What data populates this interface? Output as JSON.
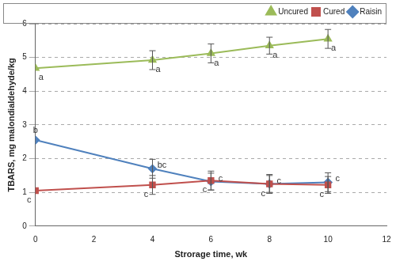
{
  "chart_data": {
    "type": "line",
    "x_label": "Strorage time, wk",
    "y_label": "TBARS, mg malondialdehyde/kg",
    "x": [
      0,
      4,
      6,
      8,
      10
    ],
    "xlim": [
      0,
      12
    ],
    "xticks": [
      0,
      2,
      4,
      6,
      8,
      10,
      12
    ],
    "ylim": [
      0,
      6
    ],
    "yticks": [
      0,
      1,
      2,
      3,
      4,
      5,
      6
    ],
    "grid": "y",
    "legend": "upper right",
    "series": [
      {
        "name": "Uncured",
        "color": "#9bbb59",
        "marker": "triangle",
        "line_style": "solid",
        "values": [
          4.68,
          4.92,
          5.12,
          5.35,
          5.55
        ],
        "errors": [
          0,
          0.28,
          0.28,
          0.25,
          0.28
        ],
        "annotations": [
          "a",
          "a",
          "a",
          "a",
          "a"
        ]
      },
      {
        "name": "Cured",
        "color": "#c0504d",
        "marker": "square",
        "line_style": "solid",
        "values": [
          1.05,
          1.22,
          1.35,
          1.25,
          1.22
        ],
        "errors": [
          0,
          0.28,
          0.28,
          0.25,
          0.25
        ],
        "annotations": [
          "c",
          "c",
          "c",
          "c",
          "c"
        ]
      },
      {
        "name": "Raisin",
        "color": "#4f81bd",
        "marker": "diamond",
        "line_style": "solid",
        "values": [
          2.55,
          1.7,
          1.32,
          1.25,
          1.3
        ],
        "errors": [
          0,
          0.28,
          0.25,
          0.28,
          0.28
        ],
        "annotations": [
          "b",
          "bc",
          "c",
          "c",
          "c"
        ]
      }
    ]
  }
}
